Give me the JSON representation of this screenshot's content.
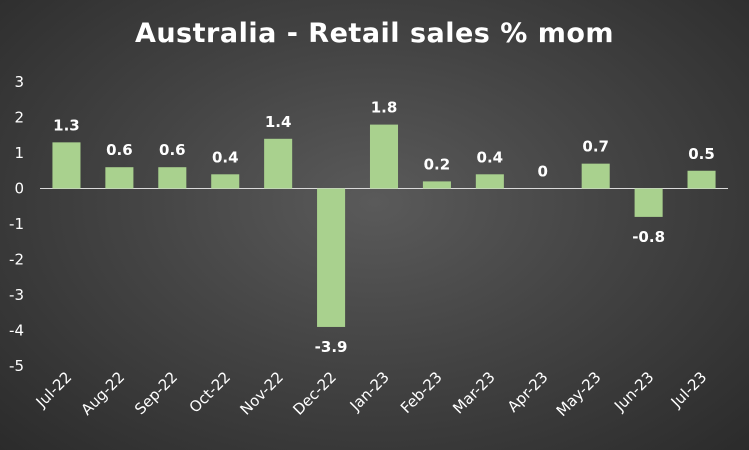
{
  "chart_data": {
    "type": "bar",
    "title": "Australia - Retail sales % mom",
    "categories": [
      "Jul-22",
      "Aug-22",
      "Sep-22",
      "Oct-22",
      "Nov-22",
      "Dec-22",
      "Jan-23",
      "Feb-23",
      "Mar-23",
      "Apr-23",
      "May-23",
      "Jun-23",
      "Jul-23"
    ],
    "values": [
      1.3,
      0.6,
      0.6,
      0.4,
      1.4,
      -3.9,
      1.8,
      0.2,
      0.4,
      0,
      0.7,
      -0.8,
      0.5
    ],
    "value_labels": [
      "1.3",
      "0.6",
      "0.6",
      "0.4",
      "1.4",
      "-3.9",
      "1.8",
      "0.2",
      "0.4",
      "0",
      "0.7",
      "-0.8",
      "0.5"
    ],
    "ylim": [
      -5,
      3
    ],
    "y_ticks": [
      3,
      2,
      1,
      0,
      -1,
      -2,
      -3,
      -4,
      -5
    ],
    "xlabel": "",
    "ylabel": "",
    "grid": false,
    "legend": "none",
    "bar_color": "#a9d18e"
  }
}
